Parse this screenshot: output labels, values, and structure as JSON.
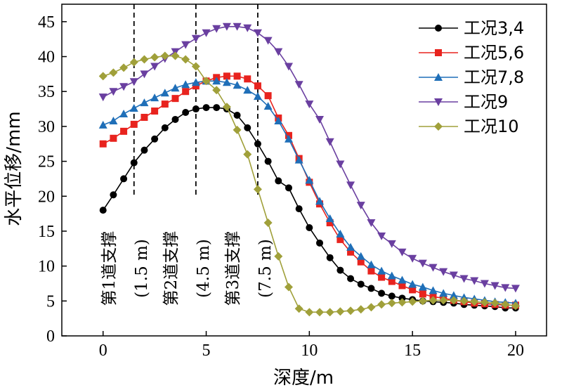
{
  "chart_data": {
    "type": "line",
    "xlabel": "深度/m",
    "ylabel": "水平位移/mm",
    "xlim": [
      -2,
      21.5
    ],
    "ylim": [
      0,
      47.5
    ],
    "xticks": [
      "0",
      "5",
      "10",
      "15",
      "20"
    ],
    "yticks": [
      "0",
      "5",
      "10",
      "15",
      "20",
      "25",
      "30",
      "35",
      "40",
      "45"
    ],
    "grid": false,
    "legend_position": "top-right",
    "colors": {
      "s1": "#000000",
      "s2": "#e8231e",
      "s3": "#1f6fb8",
      "s4": "#6a3fa0",
      "s5": "#a0a03a",
      "axis": "#000000"
    },
    "x": [
      0,
      0.5,
      1,
      1.5,
      2,
      2.5,
      3,
      3.5,
      4,
      4.5,
      5,
      5.5,
      6,
      6.5,
      7,
      7.5,
      8,
      8.5,
      9,
      9.5,
      10,
      10.5,
      11,
      11.5,
      12,
      12.5,
      13,
      13.5,
      14,
      14.5,
      15,
      15.5,
      16,
      16.5,
      17,
      17.5,
      18,
      18.5,
      19,
      19.5,
      20
    ],
    "series": [
      {
        "name": "工况3,4",
        "key": "s1",
        "marker": "circle",
        "values": [
          18.0,
          20.2,
          22.5,
          24.8,
          26.6,
          28.2,
          29.8,
          31.0,
          32.0,
          32.5,
          32.7,
          32.7,
          32.5,
          31.6,
          29.8,
          27.5,
          25.0,
          22.2,
          21.2,
          18.2,
          15.5,
          13.3,
          11.2,
          9.4,
          8.2,
          7.4,
          6.8,
          6.1,
          5.7,
          5.4,
          5.2,
          5.0,
          4.9,
          4.8,
          4.7,
          4.5,
          4.4,
          4.3,
          4.2,
          4.0,
          4.0
        ]
      },
      {
        "name": "工况5,6",
        "key": "s2",
        "marker": "square",
        "values": [
          27.5,
          28.3,
          29.3,
          30.3,
          31.3,
          32.2,
          33.2,
          34.0,
          35.0,
          35.8,
          36.5,
          37.0,
          37.2,
          37.2,
          36.8,
          35.8,
          34.4,
          31.2,
          28.7,
          25.4,
          22.0,
          18.9,
          16.2,
          13.8,
          12.0,
          10.6,
          9.3,
          8.4,
          7.8,
          7.2,
          6.6,
          6.0,
          5.6,
          5.4,
          5.1,
          4.9,
          4.7,
          4.6,
          4.5,
          4.4,
          4.4
        ]
      },
      {
        "name": "工况7,8",
        "key": "s3",
        "marker": "triangle-up",
        "values": [
          30.2,
          30.8,
          31.8,
          32.6,
          33.4,
          34.1,
          34.8,
          35.5,
          36.0,
          36.3,
          36.5,
          36.5,
          36.3,
          35.9,
          35.2,
          34.3,
          32.9,
          30.8,
          28.2,
          25.2,
          22.3,
          19.3,
          16.8,
          14.6,
          12.7,
          11.4,
          10.2,
          9.3,
          8.6,
          8.0,
          7.4,
          7.0,
          6.5,
          6.1,
          5.8,
          5.5,
          5.3,
          5.1,
          4.9,
          4.8,
          4.7
        ]
      },
      {
        "name": "工况9",
        "key": "s4",
        "marker": "triangle-down",
        "values": [
          34.2,
          35.0,
          35.7,
          36.4,
          37.5,
          38.6,
          39.7,
          40.7,
          41.7,
          42.6,
          43.4,
          44.0,
          44.3,
          44.3,
          44.1,
          43.4,
          42.3,
          40.7,
          38.6,
          36.0,
          33.2,
          31.0,
          27.8,
          24.6,
          21.6,
          18.7,
          16.2,
          14.3,
          13.2,
          12.0,
          11.1,
          10.4,
          9.8,
          9.2,
          8.7,
          8.2,
          7.9,
          7.5,
          7.2,
          6.9,
          6.8
        ]
      },
      {
        "name": "工况10",
        "key": "s5",
        "marker": "diamond",
        "values": [
          37.2,
          37.7,
          38.4,
          39.2,
          39.6,
          39.9,
          40.1,
          40.1,
          39.6,
          38.6,
          36.5,
          35.2,
          32.8,
          29.5,
          26.0,
          21.0,
          16.2,
          11.4,
          7.0,
          3.9,
          3.4,
          3.4,
          3.4,
          3.5,
          3.6,
          3.8,
          4.1,
          4.5,
          4.7,
          4.8,
          4.9,
          5.0,
          5.1,
          5.1,
          5.1,
          5.0,
          4.9,
          4.8,
          4.7,
          4.5,
          4.3
        ]
      }
    ],
    "support_lines": [
      {
        "x": 1.5,
        "label": "第1道支撑",
        "depth_label": "(1.5 m)"
      },
      {
        "x": 4.5,
        "label": "第2道支撑",
        "depth_label": "(4.5 m)"
      },
      {
        "x": 7.5,
        "label": "第3道支撑",
        "depth_label": "(7.5 m)"
      }
    ]
  }
}
